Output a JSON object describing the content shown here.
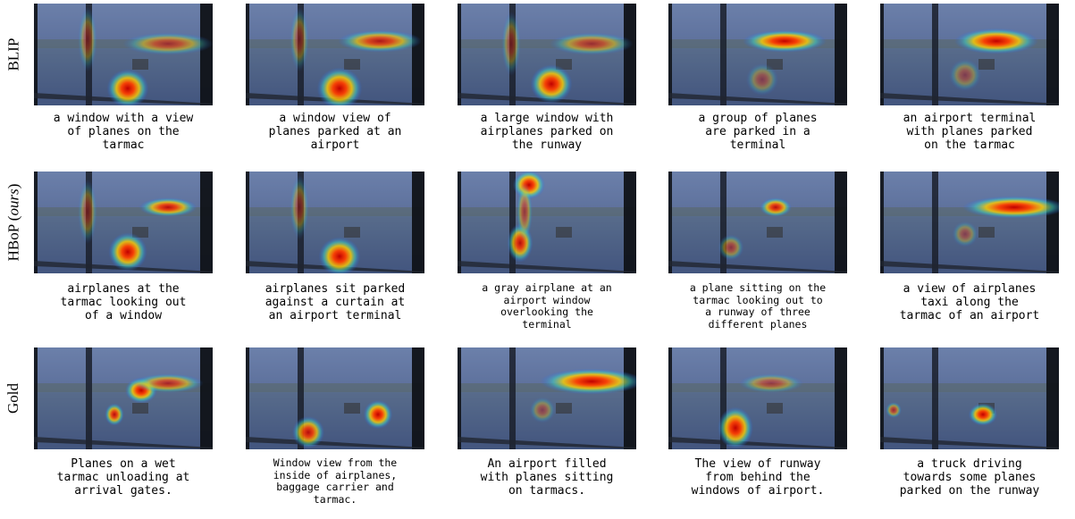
{
  "rows": [
    {
      "label": [
        "BLIP"
      ],
      "captions": [
        [
          "a window with a view",
          "of planes on the",
          "tarmac"
        ],
        [
          "a window view of",
          "planes parked at an",
          "airport"
        ],
        [
          "a large window with",
          "airplanes parked on",
          "the runway"
        ],
        [
          "a group of planes",
          "are parked in a",
          "terminal"
        ],
        [
          "an airport terminal",
          "with planes parked",
          "on the tarmac"
        ]
      ]
    },
    {
      "label": [
        "HBoP (",
        "ours",
        ")"
      ],
      "captions": [
        [
          "airplanes at the",
          "tarmac looking out",
          "of a window"
        ],
        [
          "airplanes sit parked",
          "against a curtain at",
          "an airport terminal"
        ],
        [
          "a gray airplane at an",
          "airport window",
          "overlooking the",
          "terminal"
        ],
        [
          "a plane sitting on the",
          "tarmac looking out to",
          "a runway of three",
          "different planes"
        ],
        [
          "a view of airplanes",
          "taxi along the",
          "tarmac of an airport"
        ]
      ]
    },
    {
      "label": [
        "Gold"
      ],
      "captions": [
        [
          "Planes on a wet",
          "tarmac unloading at",
          "arrival gates."
        ],
        [
          "Window view from the",
          "inside of airplanes,",
          "baggage carrier and",
          "tarmac."
        ],
        [
          "An airport filled",
          "with planes sitting",
          "on tarmacs."
        ],
        [
          "The view of runway",
          "from behind the",
          "windows of airport."
        ],
        [
          "a truck driving",
          "towards some planes",
          "parked on the runway"
        ]
      ]
    }
  ]
}
